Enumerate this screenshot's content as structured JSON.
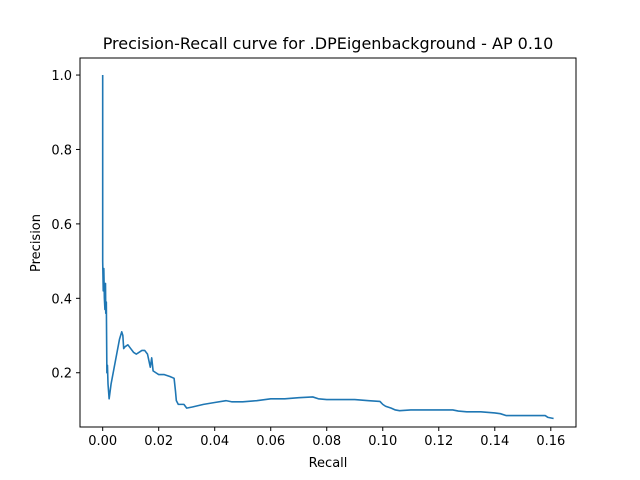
{
  "chart_data": {
    "type": "line",
    "title": "Precision-Recall curve for .DPEigenbackground - AP 0.10",
    "xlabel": "Recall",
    "ylabel": "Precision",
    "xlim": [
      -0.0081,
      0.169
    ],
    "ylim": [
      0.0542,
      1.0458
    ],
    "xticks": [
      0.0,
      0.02,
      0.04,
      0.06,
      0.08,
      0.1,
      0.12,
      0.14,
      0.16
    ],
    "xtick_labels": [
      "0.00",
      "0.02",
      "0.04",
      "0.06",
      "0.08",
      "0.10",
      "0.12",
      "0.14",
      "0.16"
    ],
    "yticks": [
      0.2,
      0.4,
      0.6,
      0.8,
      1.0
    ],
    "ytick_labels": [
      "0.2",
      "0.4",
      "0.6",
      "0.8",
      "1.0"
    ],
    "grid": false,
    "series": [
      {
        "color": "#1f77b4",
        "x": [
          0.0,
          0.0,
          0.0,
          0.0002,
          0.0004,
          0.0006,
          0.0008,
          0.001,
          0.0011,
          0.0013,
          0.0015,
          0.0017,
          0.0019,
          0.0021,
          0.0023,
          0.003,
          0.004,
          0.005,
          0.006,
          0.0068,
          0.0072,
          0.0075,
          0.008,
          0.009,
          0.01,
          0.011,
          0.012,
          0.013,
          0.014,
          0.015,
          0.016,
          0.017,
          0.0175,
          0.018,
          0.019,
          0.02,
          0.021,
          0.022,
          0.024,
          0.0255,
          0.026,
          0.0263,
          0.027,
          0.028,
          0.029,
          0.03,
          0.032,
          0.036,
          0.04,
          0.044,
          0.046,
          0.05,
          0.055,
          0.06,
          0.065,
          0.07,
          0.075,
          0.077,
          0.08,
          0.085,
          0.09,
          0.095,
          0.099,
          0.1,
          0.101,
          0.103,
          0.1045,
          0.106,
          0.11,
          0.115,
          0.12,
          0.125,
          0.127,
          0.13,
          0.135,
          0.14,
          0.142,
          0.144,
          0.148,
          0.152,
          0.156,
          0.158,
          0.159,
          0.161
        ],
        "y": [
          1.0,
          0.65,
          0.5,
          0.42,
          0.48,
          0.4,
          0.37,
          0.44,
          0.36,
          0.39,
          0.2,
          0.22,
          0.17,
          0.15,
          0.13,
          0.17,
          0.21,
          0.25,
          0.29,
          0.31,
          0.3,
          0.265,
          0.27,
          0.275,
          0.265,
          0.255,
          0.25,
          0.255,
          0.26,
          0.26,
          0.25,
          0.215,
          0.24,
          0.205,
          0.2,
          0.195,
          0.195,
          0.195,
          0.19,
          0.185,
          0.15,
          0.125,
          0.115,
          0.115,
          0.115,
          0.105,
          0.108,
          0.115,
          0.12,
          0.125,
          0.122,
          0.122,
          0.125,
          0.13,
          0.13,
          0.133,
          0.135,
          0.13,
          0.128,
          0.128,
          0.128,
          0.125,
          0.123,
          0.115,
          0.11,
          0.105,
          0.1,
          0.098,
          0.1,
          0.1,
          0.1,
          0.1,
          0.097,
          0.095,
          0.095,
          0.092,
          0.09,
          0.085,
          0.085,
          0.085,
          0.085,
          0.085,
          0.08,
          0.077
        ]
      }
    ]
  }
}
